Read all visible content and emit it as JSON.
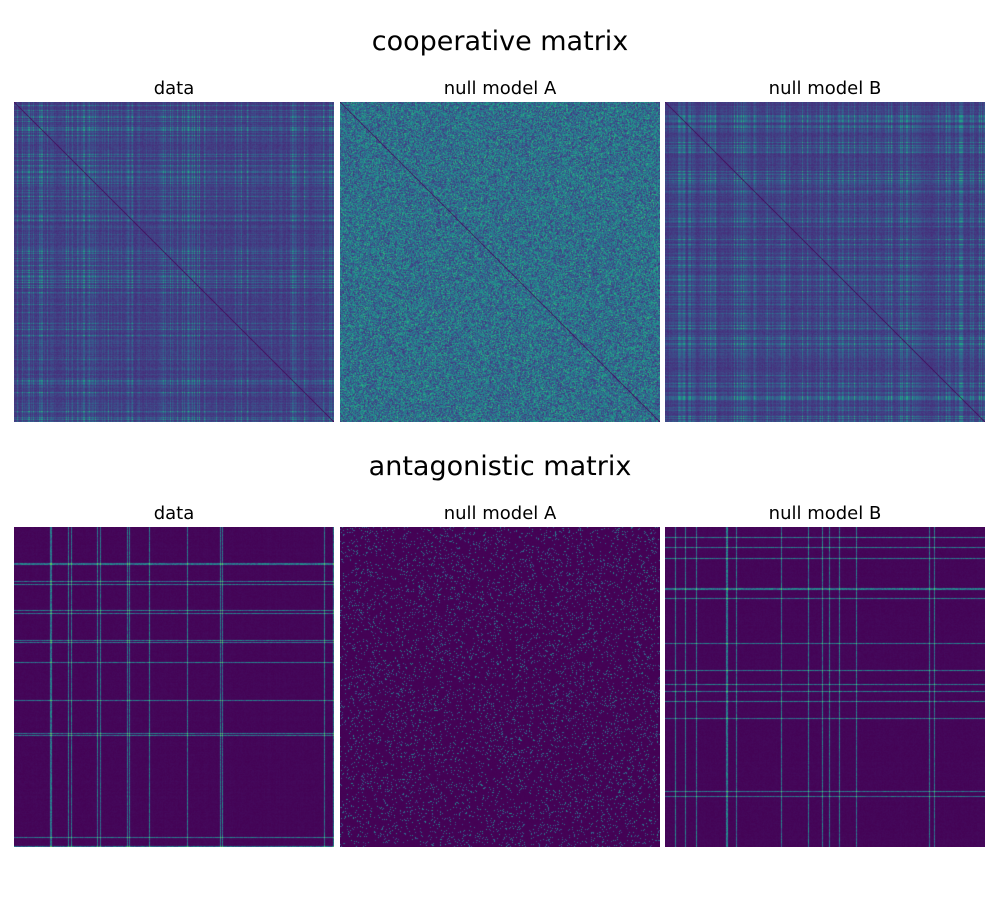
{
  "chart_data": [
    {
      "type": "heatmap",
      "group_title": "cooperative matrix",
      "panels": [
        {
          "title": "data",
          "pattern": "structured",
          "diagonal": "dark"
        },
        {
          "title": "null model A",
          "pattern": "noise",
          "diagonal": "dark"
        },
        {
          "title": "null model B",
          "pattern": "structured",
          "diagonal": "dark"
        }
      ],
      "colormap": "viridis",
      "axes_visible": false
    },
    {
      "type": "heatmap",
      "group_title": "antagonistic matrix",
      "panels": [
        {
          "title": "data",
          "pattern": "sparse-structured",
          "diagonal": "none"
        },
        {
          "title": "null model A",
          "pattern": "sparse-noise",
          "diagonal": "none"
        },
        {
          "title": "null model B",
          "pattern": "sparse-structured",
          "diagonal": "none"
        }
      ],
      "colormap": "viridis",
      "axes_visible": false
    }
  ]
}
